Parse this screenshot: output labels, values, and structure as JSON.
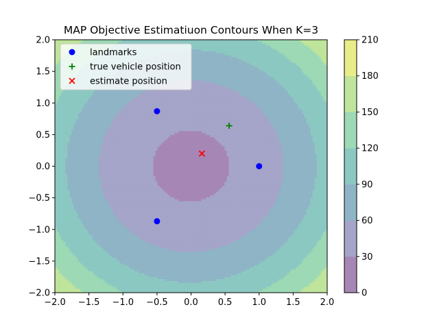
{
  "chart_data": {
    "type": "contour",
    "title": "MAP Objective Estimatiuon Contours When K=3",
    "xlabel": "",
    "ylabel": "",
    "xlim": [
      -2.0,
      2.0
    ],
    "ylim": [
      -2.0,
      2.0
    ],
    "x_ticks": [
      "−2.0",
      "−1.5",
      "−1.0",
      "−0.5",
      "0.0",
      "0.5",
      "1.0",
      "1.5",
      "2.0"
    ],
    "y_ticks": [
      "−2.0",
      "−1.5",
      "−1.0",
      "−0.5",
      "0.0",
      "0.5",
      "1.0",
      "1.5",
      "2.0"
    ],
    "x_tick_values": [
      -2.0,
      -1.5,
      -1.0,
      -0.5,
      0.0,
      0.5,
      1.0,
      1.5,
      2.0
    ],
    "y_tick_values": [
      -2.0,
      -1.5,
      -1.0,
      -0.5,
      0.0,
      0.5,
      1.0,
      1.5,
      2.0
    ],
    "contour_levels": [
      0,
      30,
      60,
      90,
      120,
      150,
      180,
      210
    ],
    "colorbar_ticks": [
      "0",
      "30",
      "60",
      "90",
      "120",
      "150",
      "180",
      "210"
    ],
    "level_colors": [
      "#a686b4",
      "#a5a4c9",
      "#8eb4c6",
      "#8cc8c2",
      "#9cd9b4",
      "#bfe49b",
      "#e8ec89"
    ],
    "grid": false,
    "legend_position": "upper-left",
    "legend": [
      {
        "label": "landmarks",
        "marker": "circle",
        "color": "#0000ff"
      },
      {
        "label": "true vehicle position",
        "marker": "plus",
        "color": "#008000"
      },
      {
        "label": "estimate position",
        "marker": "x",
        "color": "#ff0000"
      }
    ],
    "landmarks": [
      {
        "x": -0.5,
        "y": 0.87
      },
      {
        "x": 1.0,
        "y": 0.0
      },
      {
        "x": -0.5,
        "y": -0.87
      }
    ],
    "true_vehicle_position": {
      "x": 0.56,
      "y": 0.64
    },
    "estimate_position": {
      "x": 0.16,
      "y": 0.2
    }
  }
}
